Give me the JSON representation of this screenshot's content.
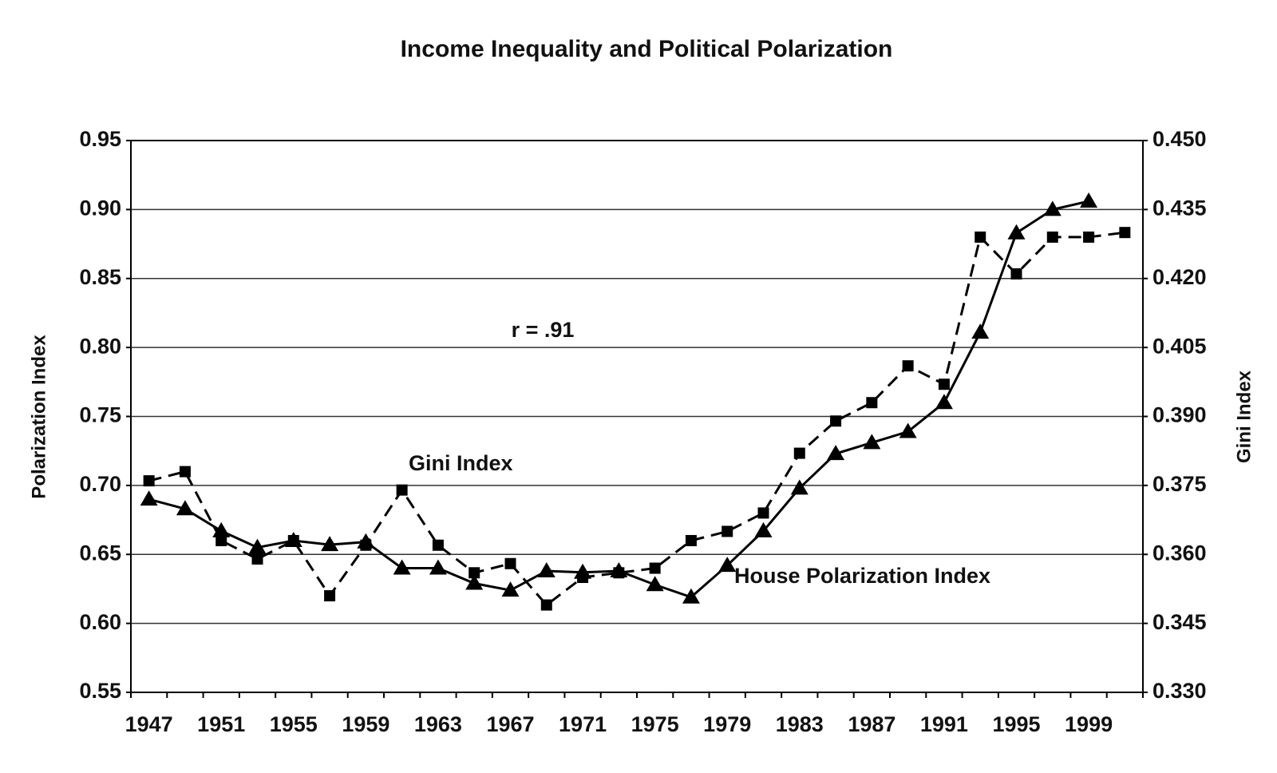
{
  "chart_data": {
    "type": "line",
    "title": "Income Inequality and Political Polarization",
    "ylabel": "Polarization Index",
    "y2label": "Gini Index",
    "annotations": [
      "r = .91"
    ],
    "categories": [
      "1947",
      null,
      "1951",
      null,
      "1955",
      null,
      "1959",
      null,
      "1963",
      null,
      "1967",
      null,
      "1971",
      null,
      "1975",
      null,
      "1979",
      null,
      "1983",
      null,
      "1987",
      null,
      "1991",
      null,
      "1995",
      null,
      "1999",
      null
    ],
    "series": [
      {
        "name": "House Polarization Index",
        "color": "#000000",
        "marker": "triangle",
        "dashed": false,
        "values": [
          0.69,
          0.683,
          0.667,
          0.655,
          0.66,
          0.657,
          0.659,
          0.64,
          0.64,
          0.629,
          0.624,
          0.638,
          0.637,
          0.638,
          0.628,
          0.619,
          0.642,
          0.667,
          0.698,
          0.723,
          0.731,
          0.739,
          0.76,
          0.811,
          0.883,
          0.9,
          0.906,
          null
        ]
      },
      {
        "name": "Gini Index",
        "color": "#000000",
        "marker": "square",
        "dashed": true,
        "axis": "y2",
        "values": [
          0.376,
          0.378,
          0.363,
          0.359,
          0.363,
          0.351,
          0.362,
          0.374,
          0.362,
          0.356,
          0.358,
          0.349,
          0.355,
          0.356,
          0.357,
          0.363,
          0.365,
          0.369,
          0.382,
          0.389,
          0.393,
          0.401,
          0.397,
          0.429,
          0.421,
          0.429,
          0.429,
          0.43
        ]
      }
    ],
    "ylim": [
      0.55,
      0.95
    ],
    "yticks": [
      0.55,
      {
        "value": 0.6,
        "label": "0.60"
      },
      0.65,
      {
        "value": 0.7,
        "label": "0.70"
      },
      0.75,
      {
        "value": 0.8,
        "label": "0.80"
      },
      0.85,
      {
        "value": 0.9,
        "label": "0.90"
      },
      0.95
    ],
    "y2lim": [
      0.33,
      0.45
    ],
    "y2ticks": [
      {
        "value": 0.33,
        "label": "0.330"
      },
      0.345,
      {
        "value": 0.36,
        "label": "0.360"
      },
      0.375,
      {
        "value": 0.39,
        "label": "0.390"
      },
      0.405,
      {
        "value": 0.42,
        "label": "0.420"
      },
      0.435,
      {
        "value": 0.45,
        "label": "0.450"
      }
    ],
    "grid": true
  }
}
